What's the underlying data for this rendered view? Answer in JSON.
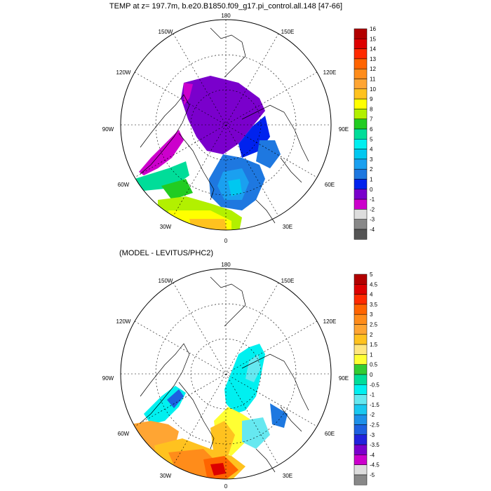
{
  "top_panel": {
    "title": "TEMP at z= 197.7m, b.e20.B1850.f09_g17.pi_control.all.148 [47-66]",
    "longitude_labels": {
      "n": "180",
      "nw": "150W",
      "ne": "150E",
      "wnw": "120W",
      "ene": "120E",
      "w": "90W",
      "e": "90E",
      "wsw": "60W",
      "esw": "60E",
      "ssw": "30W",
      "sse": "30E",
      "s": "0"
    },
    "colorbar": {
      "labels": [
        "16",
        "15",
        "14",
        "13",
        "12",
        "11",
        "10",
        "9",
        "8",
        "7",
        "6",
        "5",
        "4",
        "3",
        "2",
        "1",
        "0",
        "-1",
        "-2",
        "-3",
        "-4"
      ],
      "colors": [
        "#b20000",
        "#dd0000",
        "#ff2a00",
        "#ff6400",
        "#ff8c1a",
        "#ffa533",
        "#ffc21f",
        "#ffff00",
        "#b2f000",
        "#22cc22",
        "#00dd99",
        "#00f0f0",
        "#00c8f0",
        "#1aa0f0",
        "#1e78e0",
        "#0022ee",
        "#7a00cc",
        "#cc00cc",
        "#dddddd",
        "#888888",
        "#555555"
      ]
    }
  },
  "bottom_panel": {
    "title": "(MODEL - LEVITUS/PHC2)",
    "longitude_labels": {
      "n": "180",
      "nw": "150W",
      "ne": "150E",
      "wnw": "120W",
      "ene": "120E",
      "w": "90W",
      "e": "90E",
      "wsw": "60W",
      "esw": "60E",
      "ssw": "30W",
      "sse": "30E",
      "s": "0"
    },
    "colorbar": {
      "labels": [
        "5",
        "4.5",
        "4",
        "3.5",
        "3",
        "2.5",
        "2",
        "1.5",
        "1",
        "0.5",
        "0",
        "-0.5",
        "-1",
        "-1.5",
        "-2",
        "-2.5",
        "-3",
        "-3.5",
        "-4",
        "-4.5",
        "-5"
      ],
      "colors": [
        "#b20000",
        "#dd0000",
        "#ff2a00",
        "#ff6400",
        "#ff8c1a",
        "#ffa533",
        "#ffc21f",
        "#ffe680",
        "#ffff33",
        "#33cc33",
        "#00dd99",
        "#00f0f0",
        "#66e8f0",
        "#1ac8f0",
        "#1e90e8",
        "#1e60e0",
        "#2222dd",
        "#7a00cc",
        "#cc00cc",
        "#dddddd",
        "#888888"
      ]
    }
  }
}
